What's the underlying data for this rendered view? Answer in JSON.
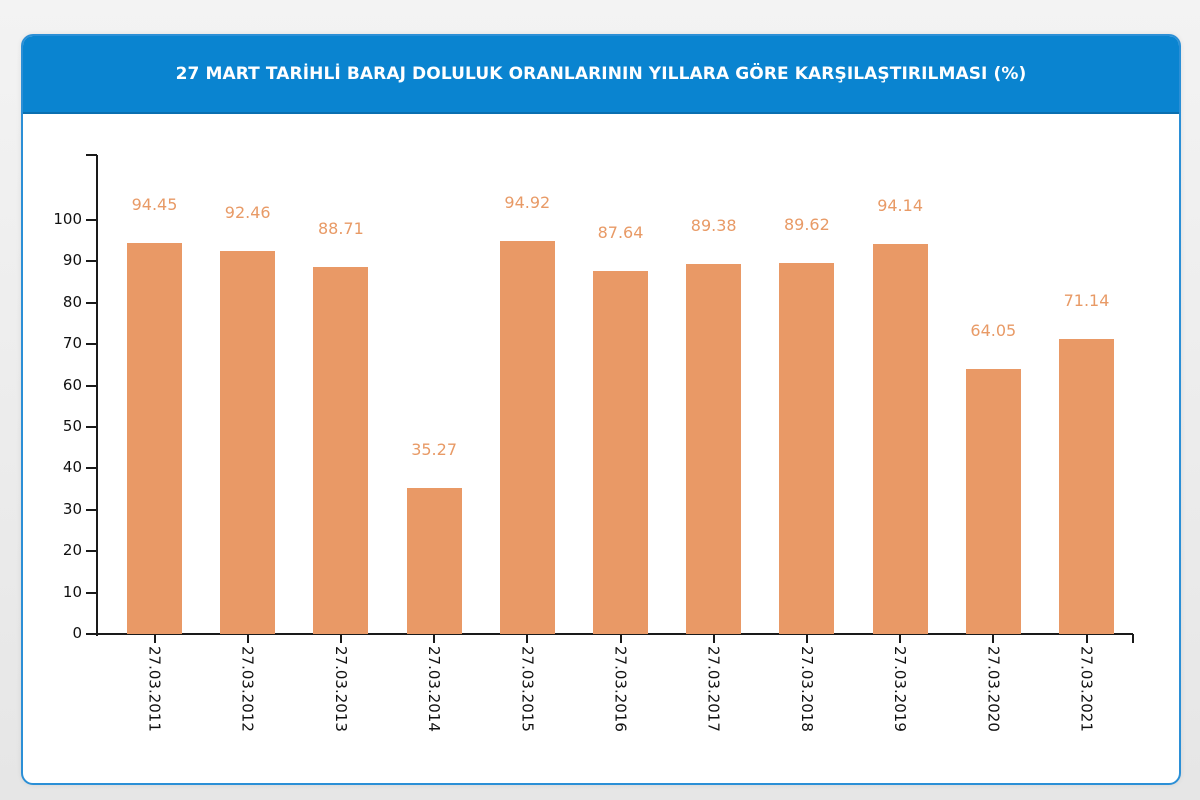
{
  "header": {
    "title": "27 MART TARİHLİ BARAJ DOLULUK ORANLARININ YILLARA GÖRE KARŞILAŞTIRILMASI (%)"
  },
  "colors": {
    "header_bg": "#0a84d0",
    "card_border": "#2b8fd6",
    "bar": "#e99966",
    "value_label": "#e89a66",
    "axis": "#1a1a1a"
  },
  "chart_data": {
    "type": "bar",
    "title": "27 MART TARİHLİ BARAJ DOLULUK ORANLARININ YILLARA GÖRE KARŞILAŞTIRILMASI (%)",
    "xlabel": "",
    "ylabel": "",
    "categories": [
      "27.03.2011",
      "27.03.2012",
      "27.03.2013",
      "27.03.2014",
      "27.03.2015",
      "27.03.2016",
      "27.03.2017",
      "27.03.2018",
      "27.03.2019",
      "27.03.2020",
      "27.03.2021"
    ],
    "values": [
      94.45,
      92.46,
      88.71,
      35.27,
      94.92,
      87.64,
      89.38,
      89.62,
      94.14,
      64.05,
      71.14
    ],
    "value_labels": [
      "94.45",
      "92.46",
      "88.71",
      "35.27",
      "94.92",
      "87.64",
      "89.38",
      "89.62",
      "94.14",
      "64.05",
      "71.14"
    ],
    "yticks": [
      0,
      10,
      20,
      30,
      40,
      50,
      60,
      70,
      80,
      90,
      100
    ],
    "ytick_labels": [
      "0",
      "10",
      "20",
      "30",
      "40",
      "50",
      "60",
      "70",
      "80",
      "90",
      "100"
    ],
    "ylim": [
      0,
      115
    ],
    "grid": false,
    "legend": null,
    "xtick_rotation": 90
  }
}
